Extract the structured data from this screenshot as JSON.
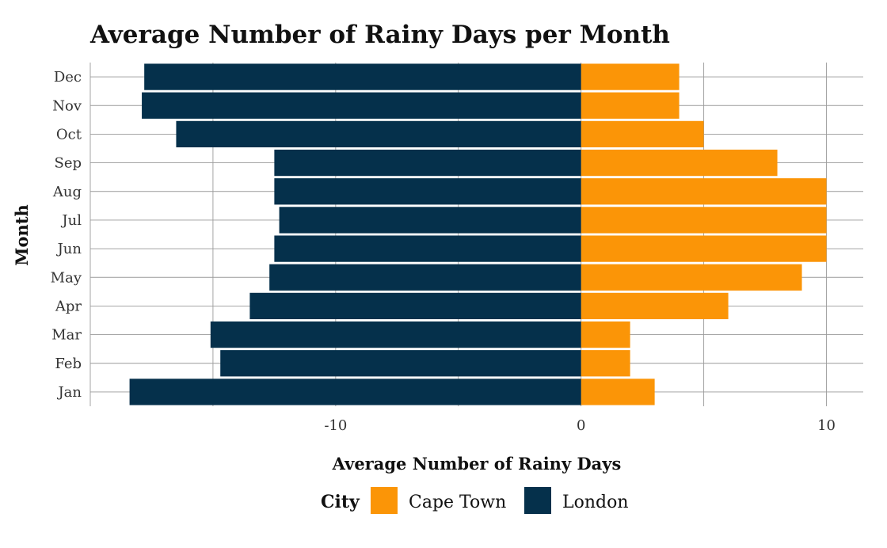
{
  "chart_data": {
    "type": "bar",
    "orientation": "horizontal",
    "stacked": "diverging",
    "title": "Average Number of Rainy Days per Month",
    "xlabel": "Average Number of Rainy Days",
    "ylabel": "Month",
    "categories": [
      "Jan",
      "Feb",
      "Mar",
      "Apr",
      "May",
      "Jun",
      "Jul",
      "Aug",
      "Sep",
      "Oct",
      "Nov",
      "Dec"
    ],
    "series": [
      {
        "name": "Cape Town",
        "color": "#fb9507",
        "values": [
          3,
          2,
          2,
          6,
          9,
          10,
          10,
          10,
          8,
          5,
          4,
          4
        ]
      },
      {
        "name": "London",
        "color": "#05304b",
        "values": [
          -18.4,
          -14.7,
          -15.1,
          -13.5,
          -12.7,
          -12.5,
          -12.3,
          -12.5,
          -12.5,
          -16.5,
          -17.9,
          -17.8
        ]
      }
    ],
    "xlim": [
      -20,
      11.5
    ],
    "xticks": [
      -10,
      0,
      10
    ],
    "xtick_labels": [
      "-10",
      "0",
      "10"
    ],
    "grid": true,
    "legend": {
      "title": "City",
      "position": "bottom",
      "entries": [
        "Cape Town",
        "London"
      ]
    }
  }
}
